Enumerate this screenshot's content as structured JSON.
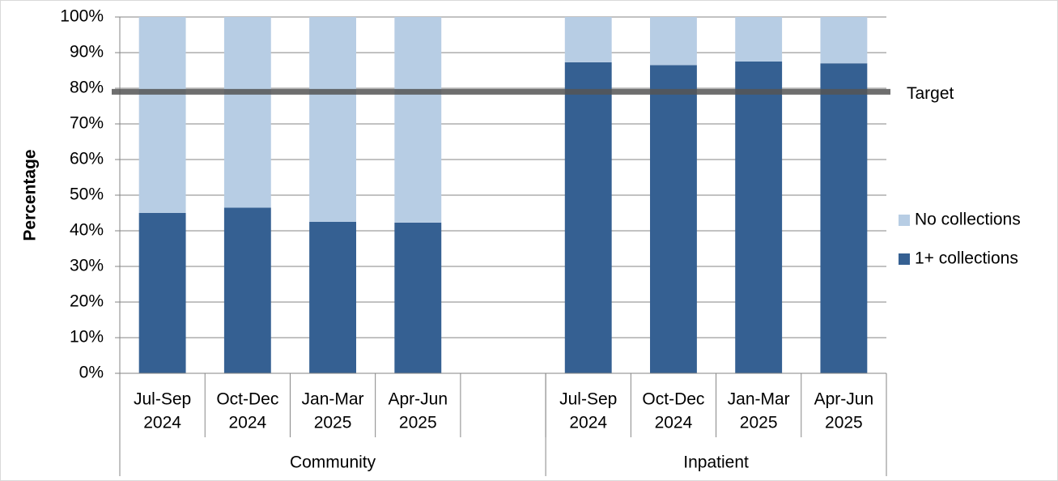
{
  "chart_data": {
    "type": "stacked_bar",
    "y_label": "Percentage",
    "categories": [
      [
        "Jul-Sep",
        "2024"
      ],
      [
        "Oct-Dec",
        "2024"
      ],
      [
        "Jan-Mar",
        "2025"
      ],
      [
        "Apr-Jun",
        "2025"
      ],
      null,
      [
        "Jul-Sep",
        "2024"
      ],
      [
        "Oct-Dec",
        "2024"
      ],
      [
        "Jan-Mar",
        "2025"
      ],
      [
        "Apr-Jun",
        "2025"
      ]
    ],
    "groups": [
      {
        "name": "Community",
        "span": 5
      },
      {
        "name": "Inpatient",
        "span": 4
      }
    ],
    "series": [
      {
        "name": "1+ collections",
        "color": "#356092",
        "values": [
          45,
          46.5,
          42.5,
          42.3,
          null,
          87.3,
          86.5,
          87.5,
          87
        ]
      },
      {
        "name": "No collections",
        "color": "#b7cde4",
        "values": [
          55,
          53.5,
          57.5,
          57.7,
          null,
          12.7,
          13.5,
          12.5,
          13
        ]
      }
    ],
    "target": {
      "name": "Target",
      "value": 79,
      "color": "#555555"
    },
    "ylim": [
      0,
      100
    ],
    "yticks": [
      {
        "value": 0,
        "label": "0%"
      },
      {
        "value": 10,
        "label": "10%"
      },
      {
        "value": 20,
        "label": "20%"
      },
      {
        "value": 30,
        "label": "30%"
      },
      {
        "value": 40,
        "label": "40%"
      },
      {
        "value": 50,
        "label": "50%"
      },
      {
        "value": 60,
        "label": "60%"
      },
      {
        "value": 70,
        "label": "70%"
      },
      {
        "value": 80,
        "label": "80%"
      },
      {
        "value": 90,
        "label": "90%"
      },
      {
        "value": 100,
        "label": "100%"
      }
    ],
    "grid": true,
    "legend": "right"
  }
}
